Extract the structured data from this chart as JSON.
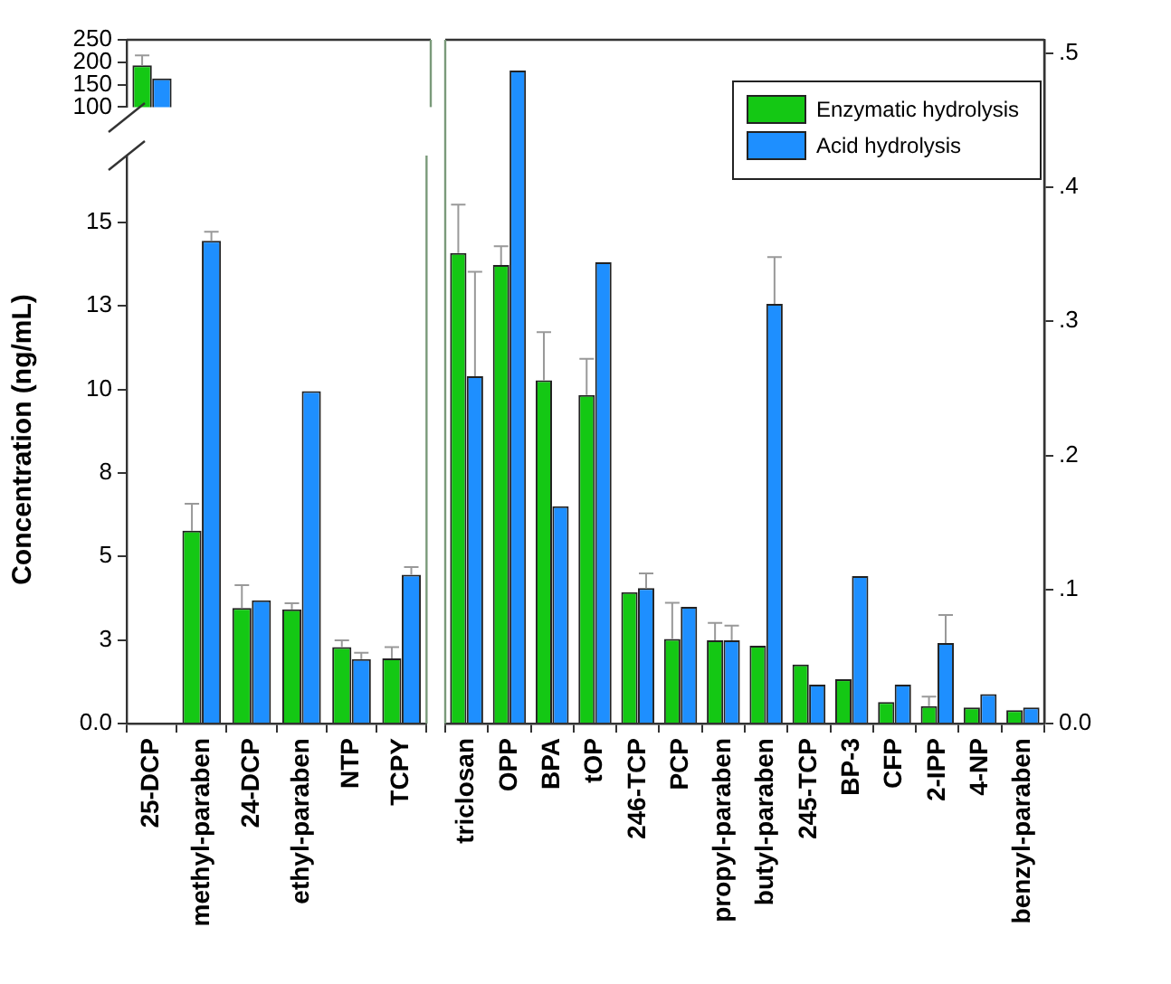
{
  "chart_data": [
    {
      "type": "bar",
      "categories": [
        null,
        null,
        null,
        null,
        null,
        null
      ],
      "ylim": [
        100,
        250
      ],
      "yticks": [
        100,
        150,
        200,
        250
      ],
      "tick_labels": "y",
      "series": [
        {
          "color": "#14c814",
          "values": [
            193,
            null,
            null,
            null,
            null,
            null
          ],
          "errors": [
            [
              193,
              215
            ],
            null,
            null,
            null,
            null,
            null
          ]
        },
        {
          "color": "#1e8fff",
          "values": [
            164,
            null,
            null,
            null,
            null,
            null
          ]
        }
      ]
    },
    {
      "type": "bar",
      "ylabel": "Concentration (ng/mL)",
      "categories": [
        "25-DCP",
        "methyl-paraben",
        "24-DCP",
        "ethyl-paraben",
        "NTP",
        "TCPY"
      ],
      "ylim": [
        0,
        17
      ],
      "yticks": [
        {
          "value": 0,
          "label": "0.0"
        },
        {
          "value": 2.5,
          "label": "3"
        },
        5,
        {
          "value": 7.5,
          "label": "8"
        },
        10,
        {
          "value": 12.5,
          "label": "13"
        },
        15
      ],
      "series": [
        {
          "color": "#14c814",
          "values": [
            null,
            5.77,
            3.46,
            3.42,
            2.29,
            1.95
          ],
          "errors": [
            null,
            [
              5.77,
              6.58
            ],
            [
              3.46,
              4.14
            ],
            [
              3.42,
              3.6
            ],
            [
              2.29,
              2.49
            ],
            [
              1.95,
              2.29
            ]
          ]
        },
        {
          "color": "#1e8fff",
          "values": [
            null,
            14.45,
            3.69,
            9.95,
            1.93,
            4.45
          ],
          "errors": [
            null,
            [
              14.45,
              14.72
            ],
            null,
            null,
            [
              1.93,
              2.12
            ],
            [
              4.45,
              4.68
            ]
          ]
        }
      ]
    },
    {
      "type": "bar",
      "categories": [
        "triclosan",
        "OPP",
        "BPA",
        "tOP",
        "246-TCP",
        "PCP",
        "propyl-paraben",
        "butyl-paraben",
        "245-TCP",
        "BP-3",
        "CFP",
        "2-IPP",
        "4-NP",
        "benzyl-paraben"
      ],
      "ylim": [
        0,
        0.51
      ],
      "yticks": [
        {
          "value": 0,
          "label": "0.0"
        },
        {
          "value": 0.1,
          "label": ".1"
        },
        {
          "value": 0.2,
          "label": ".2"
        },
        {
          "value": 0.3,
          "label": ".3"
        },
        {
          "value": 0.4,
          "label": ".4"
        },
        {
          "value": 0.5,
          "label": ".5"
        }
      ],
      "legend": "top right",
      "series": [
        {
          "name": "Enzymatic hydrolysis",
          "color": "#14c814",
          "values": [
            0.351,
            0.342,
            0.256,
            0.245,
            0.098,
            0.063,
            0.062,
            0.058,
            0.044,
            0.033,
            0.016,
            0.013,
            0.012,
            0.01
          ],
          "errors": [
            [
              0.351,
              0.387
            ],
            [
              0.342,
              0.356
            ],
            [
              0.256,
              0.292
            ],
            [
              0.245,
              0.272
            ],
            null,
            [
              0.063,
              0.09
            ],
            [
              0.062,
              0.075
            ],
            null,
            null,
            null,
            null,
            [
              0.013,
              0.02
            ],
            null,
            null
          ]
        },
        {
          "name": "Acid hydrolysis",
          "color": "#1e8fff",
          "values": [
            0.259,
            0.487,
            0.162,
            0.344,
            0.101,
            0.087,
            0.062,
            0.313,
            0.029,
            0.11,
            0.029,
            0.06,
            0.022,
            0.012
          ],
          "errors": [
            [
              0.259,
              0.337
            ],
            null,
            null,
            null,
            [
              0.101,
              0.112
            ],
            null,
            [
              0.062,
              0.073
            ],
            [
              0.313,
              0.348
            ],
            null,
            null,
            null,
            [
              0.06,
              0.081
            ],
            null,
            null
          ]
        }
      ]
    }
  ]
}
